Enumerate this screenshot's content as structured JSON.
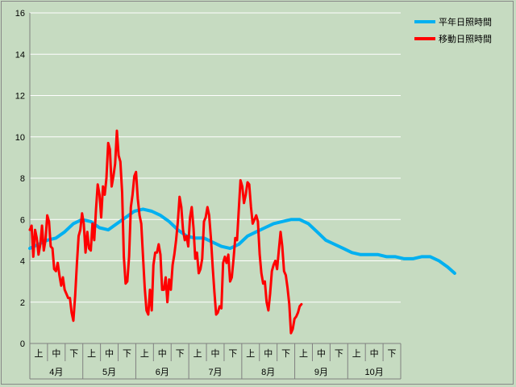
{
  "chart_data": {
    "type": "line",
    "title": "",
    "xlabel": "",
    "ylabel": "",
    "ylim": [
      0,
      16
    ],
    "yticks": [
      "0",
      "2",
      "4",
      "6",
      "8",
      "10",
      "12",
      "14",
      "16"
    ],
    "grid": true,
    "legend_position": "top-right",
    "x_range_days": [
      0,
      213
    ],
    "months": [
      "4月",
      "5月",
      "6月",
      "7月",
      "8月",
      "9月",
      "10月"
    ],
    "decades": [
      "上",
      "中",
      "下"
    ],
    "series": [
      {
        "name": "平年日照時間",
        "color": "#00b0f0",
        "points": [
          [
            0,
            4.6
          ],
          [
            5,
            4.8
          ],
          [
            10,
            5.0
          ],
          [
            15,
            5.1
          ],
          [
            20,
            5.4
          ],
          [
            25,
            5.8
          ],
          [
            30,
            6.0
          ],
          [
            35,
            5.9
          ],
          [
            40,
            5.6
          ],
          [
            45,
            5.5
          ],
          [
            50,
            5.8
          ],
          [
            55,
            6.1
          ],
          [
            60,
            6.4
          ],
          [
            65,
            6.5
          ],
          [
            70,
            6.4
          ],
          [
            75,
            6.2
          ],
          [
            80,
            5.9
          ],
          [
            85,
            5.5
          ],
          [
            90,
            5.2
          ],
          [
            95,
            5.1
          ],
          [
            100,
            5.1
          ],
          [
            105,
            4.9
          ],
          [
            110,
            4.7
          ],
          [
            115,
            4.6
          ],
          [
            120,
            4.8
          ],
          [
            125,
            5.2
          ],
          [
            130,
            5.4
          ],
          [
            135,
            5.6
          ],
          [
            140,
            5.8
          ],
          [
            145,
            5.9
          ],
          [
            150,
            6.0
          ],
          [
            155,
            6.0
          ],
          [
            160,
            5.8
          ],
          [
            165,
            5.4
          ],
          [
            170,
            5.0
          ],
          [
            175,
            4.8
          ],
          [
            180,
            4.6
          ],
          [
            185,
            4.4
          ],
          [
            190,
            4.3
          ],
          [
            195,
            4.3
          ],
          [
            200,
            4.3
          ],
          [
            205,
            4.2
          ],
          [
            210,
            4.2
          ],
          [
            215,
            4.1
          ],
          [
            220,
            4.1
          ],
          [
            225,
            4.2
          ],
          [
            230,
            4.2
          ],
          [
            235,
            4.0
          ],
          [
            240,
            3.7
          ],
          [
            244,
            3.4
          ]
        ]
      },
      {
        "name": "移動日照時間",
        "color": "#ff0000",
        "points": [
          [
            0,
            5.5
          ],
          [
            1,
            5.7
          ],
          [
            2,
            4.2
          ],
          [
            3,
            5.5
          ],
          [
            4,
            5.1
          ],
          [
            5,
            4.3
          ],
          [
            6,
            4.8
          ],
          [
            7,
            5.7
          ],
          [
            8,
            4.5
          ],
          [
            9,
            5.0
          ],
          [
            10,
            6.2
          ],
          [
            11,
            5.9
          ],
          [
            12,
            4.7
          ],
          [
            13,
            4.6
          ],
          [
            14,
            3.6
          ],
          [
            15,
            3.5
          ],
          [
            16,
            3.9
          ],
          [
            17,
            3.3
          ],
          [
            18,
            2.8
          ],
          [
            19,
            3.2
          ],
          [
            20,
            2.6
          ],
          [
            21,
            2.4
          ],
          [
            22,
            2.2
          ],
          [
            23,
            2.2
          ],
          [
            24,
            1.5
          ],
          [
            25,
            1.1
          ],
          [
            26,
            2.3
          ],
          [
            27,
            3.8
          ],
          [
            28,
            5.2
          ],
          [
            29,
            5.5
          ],
          [
            30,
            6.3
          ],
          [
            31,
            5.8
          ],
          [
            32,
            4.4
          ],
          [
            33,
            5.4
          ],
          [
            34,
            4.6
          ],
          [
            35,
            4.5
          ],
          [
            36,
            5.8
          ],
          [
            37,
            5.0
          ],
          [
            38,
            6.5
          ],
          [
            39,
            7.7
          ],
          [
            40,
            7.2
          ],
          [
            41,
            6.1
          ],
          [
            42,
            7.6
          ],
          [
            43,
            7.2
          ],
          [
            44,
            8.0
          ],
          [
            45,
            9.7
          ],
          [
            46,
            9.4
          ],
          [
            47,
            7.6
          ],
          [
            48,
            8.1
          ],
          [
            49,
            8.7
          ],
          [
            50,
            10.3
          ],
          [
            51,
            9.1
          ],
          [
            52,
            8.8
          ],
          [
            53,
            7.3
          ],
          [
            54,
            4.2
          ],
          [
            55,
            2.9
          ],
          [
            56,
            3.0
          ],
          [
            57,
            4.2
          ],
          [
            58,
            6.6
          ],
          [
            59,
            7.2
          ],
          [
            60,
            8.1
          ],
          [
            61,
            8.3
          ],
          [
            62,
            7.0
          ],
          [
            63,
            6.2
          ],
          [
            64,
            5.8
          ],
          [
            65,
            4.2
          ],
          [
            66,
            2.7
          ],
          [
            67,
            1.6
          ],
          [
            68,
            1.4
          ],
          [
            69,
            2.6
          ],
          [
            70,
            1.6
          ],
          [
            71,
            3.8
          ],
          [
            72,
            4.4
          ],
          [
            73,
            4.4
          ],
          [
            74,
            4.8
          ],
          [
            75,
            4.3
          ],
          [
            76,
            2.6
          ],
          [
            77,
            2.6
          ],
          [
            78,
            3.2
          ],
          [
            79,
            2.0
          ],
          [
            80,
            3.1
          ],
          [
            81,
            2.6
          ],
          [
            82,
            3.8
          ],
          [
            83,
            4.3
          ],
          [
            84,
            5.0
          ],
          [
            85,
            5.9
          ],
          [
            86,
            7.1
          ],
          [
            87,
            6.6
          ],
          [
            88,
            5.5
          ],
          [
            89,
            5.0
          ],
          [
            90,
            5.2
          ],
          [
            91,
            4.7
          ],
          [
            92,
            6.1
          ],
          [
            93,
            6.6
          ],
          [
            94,
            5.6
          ],
          [
            95,
            4.1
          ],
          [
            96,
            4.4
          ],
          [
            97,
            3.4
          ],
          [
            98,
            3.6
          ],
          [
            99,
            4.1
          ],
          [
            100,
            5.9
          ],
          [
            101,
            6.1
          ],
          [
            102,
            6.6
          ],
          [
            103,
            6.2
          ],
          [
            104,
            5.1
          ],
          [
            105,
            3.7
          ],
          [
            106,
            2.5
          ],
          [
            107,
            1.4
          ],
          [
            108,
            1.5
          ],
          [
            109,
            1.8
          ],
          [
            110,
            1.7
          ],
          [
            111,
            3.9
          ],
          [
            112,
            4.2
          ],
          [
            113,
            3.9
          ],
          [
            114,
            4.3
          ],
          [
            115,
            3.0
          ],
          [
            116,
            3.2
          ],
          [
            117,
            4.1
          ],
          [
            118,
            5.1
          ],
          [
            119,
            5.0
          ],
          [
            120,
            6.5
          ],
          [
            121,
            7.9
          ],
          [
            122,
            7.6
          ],
          [
            123,
            6.8
          ],
          [
            124,
            7.2
          ],
          [
            125,
            7.8
          ],
          [
            126,
            7.7
          ],
          [
            127,
            6.6
          ],
          [
            128,
            5.8
          ],
          [
            129,
            6.0
          ],
          [
            130,
            6.2
          ],
          [
            131,
            5.9
          ],
          [
            132,
            4.3
          ],
          [
            133,
            3.4
          ],
          [
            134,
            2.9
          ],
          [
            135,
            3.0
          ],
          [
            136,
            2.0
          ],
          [
            137,
            1.6
          ],
          [
            138,
            2.4
          ],
          [
            139,
            3.5
          ],
          [
            140,
            3.8
          ],
          [
            141,
            4.0
          ],
          [
            142,
            3.6
          ],
          [
            143,
            4.5
          ],
          [
            144,
            5.4
          ],
          [
            145,
            4.7
          ],
          [
            146,
            3.5
          ],
          [
            147,
            3.3
          ],
          [
            148,
            2.7
          ],
          [
            149,
            1.9
          ],
          [
            150,
            0.5
          ],
          [
            151,
            0.7
          ],
          [
            152,
            1.2
          ],
          [
            153,
            1.3
          ],
          [
            154,
            1.5
          ],
          [
            155,
            1.8
          ],
          [
            156,
            1.9
          ]
        ]
      }
    ]
  }
}
